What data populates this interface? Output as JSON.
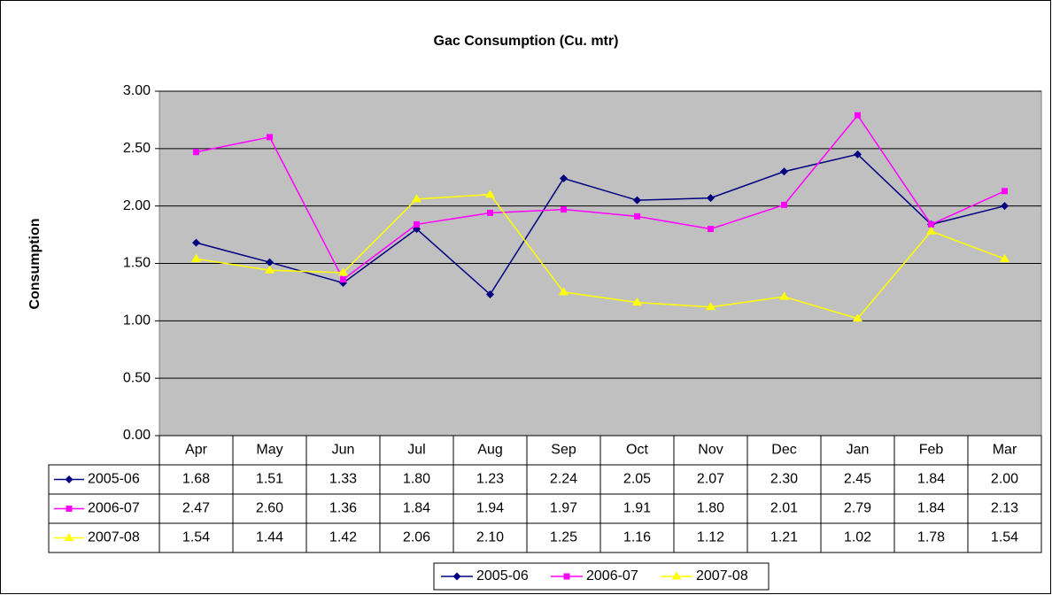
{
  "chart_data": {
    "type": "line",
    "title": "Gac Consumption (Cu. mtr)",
    "y_label": "Consumption",
    "categories": [
      "Apr",
      "May",
      "Jun",
      "Jul",
      "Aug",
      "Sep",
      "Oct",
      "Nov",
      "Dec",
      "Jan",
      "Feb",
      "Mar"
    ],
    "series": [
      {
        "name": "2005-06",
        "color": "#000080",
        "marker": "diamond",
        "values": [
          1.68,
          1.51,
          1.33,
          1.8,
          1.23,
          2.24,
          2.05,
          2.07,
          2.3,
          2.45,
          1.84,
          2.0
        ],
        "value_labels": [
          "1.68",
          "1.51",
          "1.33",
          "1.80",
          "1.23",
          "2.24",
          "2.05",
          "2.07",
          "2.30",
          "2.45",
          "1.84",
          "2.00"
        ]
      },
      {
        "name": "2006-07",
        "color": "#ff00ff",
        "marker": "square",
        "values": [
          2.47,
          2.6,
          1.36,
          1.84,
          1.94,
          1.97,
          1.91,
          1.8,
          2.01,
          2.79,
          1.84,
          2.13
        ],
        "value_labels": [
          "2.47",
          "2.60",
          "1.36",
          "1.84",
          "1.94",
          "1.97",
          "1.91",
          "1.80",
          "2.01",
          "2.79",
          "1.84",
          "2.13"
        ]
      },
      {
        "name": "2007-08",
        "color": "#ffff00",
        "marker": "triangle",
        "values": [
          1.54,
          1.44,
          1.42,
          2.06,
          2.1,
          1.25,
          1.16,
          1.12,
          1.21,
          1.02,
          1.78,
          1.54
        ],
        "value_labels": [
          "1.54",
          "1.44",
          "1.42",
          "2.06",
          "2.10",
          "1.25",
          "1.16",
          "1.12",
          "1.21",
          "1.02",
          "1.78",
          "1.54"
        ]
      }
    ],
    "ylim": [
      0,
      3
    ],
    "yticks": [
      {
        "value": 0,
        "label": "0.00"
      },
      {
        "value": 0.5,
        "label": "0.50"
      },
      {
        "value": 1,
        "label": "1.00"
      },
      {
        "value": 1.5,
        "label": "1.50"
      },
      {
        "value": 2,
        "label": "2.00"
      },
      {
        "value": 2.5,
        "label": "2.50"
      },
      {
        "value": 3,
        "label": "3.00"
      }
    ],
    "grid": true,
    "plot_background": "#c0c0c0",
    "legend": "bottom",
    "data_table": true
  }
}
